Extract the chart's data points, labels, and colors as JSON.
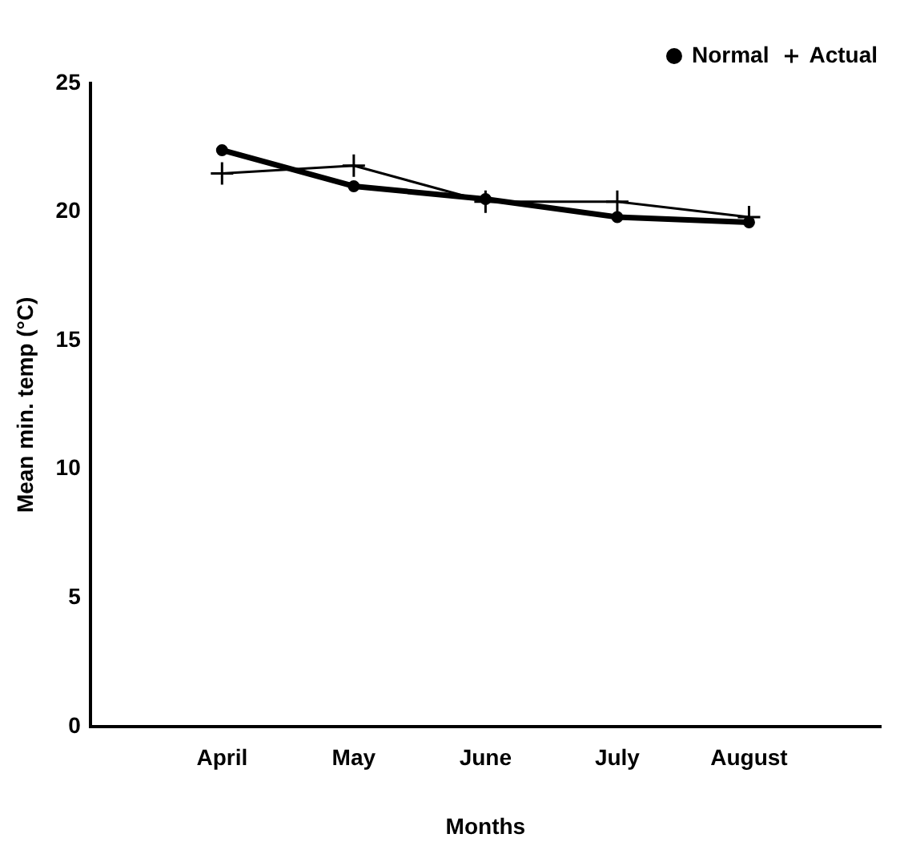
{
  "chart_data": {
    "type": "line",
    "xlabel": "Months",
    "ylabel": "Mean min. temp (°C)",
    "categories": [
      null,
      "April",
      "May",
      "June",
      "July",
      "August",
      null
    ],
    "series": [
      {
        "name": "Normal",
        "color": "#000000",
        "marker": "circle",
        "values": [
          null,
          22.4,
          21.0,
          20.5,
          19.8,
          19.6,
          null
        ]
      },
      {
        "name": "Actual",
        "color": "#000000",
        "marker": "cross",
        "values": [
          null,
          21.5,
          21.8,
          20.4,
          20.4,
          19.8,
          null
        ]
      }
    ],
    "ylim": [
      0,
      25
    ],
    "yticks": [
      0,
      5,
      10,
      15,
      20,
      25
    ],
    "grid": false,
    "legend": "top right",
    "line_style": "solid"
  }
}
